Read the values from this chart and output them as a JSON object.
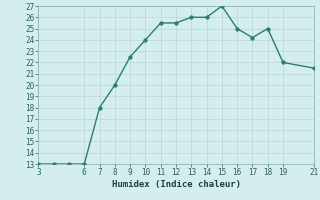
{
  "x": [
    3,
    4,
    5,
    6,
    7,
    8,
    9,
    10,
    11,
    12,
    13,
    14,
    15,
    16,
    17,
    18,
    19,
    21
  ],
  "y": [
    13,
    13,
    13,
    13,
    18,
    20,
    22.5,
    24,
    25.5,
    25.5,
    26,
    26,
    27,
    25,
    24.2,
    25,
    22,
    21.5
  ],
  "xlabel": "Humidex (Indice chaleur)",
  "xlim": [
    3,
    21
  ],
  "ylim": [
    13,
    27
  ],
  "xticks": [
    3,
    6,
    7,
    8,
    9,
    10,
    11,
    12,
    13,
    14,
    15,
    16,
    17,
    18,
    19,
    21
  ],
  "yticks": [
    13,
    14,
    15,
    16,
    17,
    18,
    19,
    20,
    21,
    22,
    23,
    24,
    25,
    26,
    27
  ],
  "line_color": "#2d7d6e",
  "marker_color": "#2d7d6e",
  "bg_color": "#d4eeee",
  "grid_major_color": "#c0d8d8",
  "grid_minor_color": "#c0d8d8",
  "spine_color": "#8aacac",
  "tick_label_color": "#2d6060",
  "xlabel_color": "#1a4040",
  "tick_fontsize": 5.5,
  "xlabel_fontsize": 6.5,
  "line_width": 1.0,
  "marker_size": 2.5
}
